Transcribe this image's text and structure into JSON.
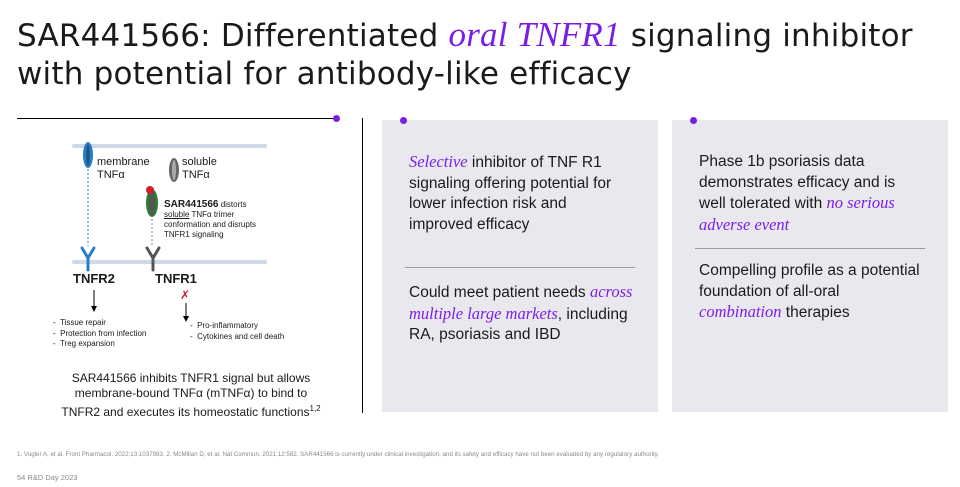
{
  "title": {
    "part1": "SAR441566: Differentiated ",
    "accent": "oral TNFR1",
    "part2": " signaling inhibitor with potential for antibody-like efficacy"
  },
  "diagram": {
    "membrane_tnf_label": "membrane",
    "membrane_tnf_sub": "TNFα",
    "soluble_tnf_label": "soluble",
    "soluble_tnf_sub": "TNFα",
    "drug_name": "SAR441566",
    "drug_desc_1": " distorts",
    "drug_desc_2": "soluble",
    "drug_desc_3": " TNFα trimer",
    "drug_desc_4": "conformation and disrupts",
    "drug_desc_5": "TNFR1 signaling",
    "tnfr2_label": "TNFR2",
    "tnfr1_label": "TNFR1",
    "tnfr2_effects": [
      "Tissue repair",
      "Protection from infection",
      "Treg expansion"
    ],
    "tnfr1_effects": [
      "Pro-inflammatory",
      "Cytokines and cell death"
    ],
    "blocked_mark": "✗",
    "caption_1": "SAR441566 inhibits TNFR1 signal but allows",
    "caption_2": "membrane-bound TNFα (mTNFα) to bind to",
    "caption_3": "TNFR2 and executes its homeostatic functions",
    "caption_sup": "1,2"
  },
  "card1": {
    "p1_em": "Selective",
    "p1_rest": " inhibitor of TNF R1 signaling offering potential for lower infection risk and improved efficacy",
    "p2_pre": "Could meet patient needs ",
    "p2_em": "across multiple large markets",
    "p2_post": ", including RA, psoriasis and IBD"
  },
  "card2": {
    "p1_pre": "Phase 1b psoriasis data demonstrates efficacy and is well tolerated with ",
    "p1_em": "no serious adverse event",
    "p2_pre": "Compelling profile as a potential foundation of all-oral ",
    "p2_em": "combination",
    "p2_post": " therapies"
  },
  "footnote": "1. Vugler A, et al. Front Pharmacol. 2022;13:1037983.     2. McMillan D, et al. Nat Commun. 2021;12:582.     SAR441566 is currently under clinical investigation, and its safety and efficacy have not been evaluated by any regulatory authority.",
  "footer": "54   R&D Day 2023",
  "colors": {
    "accent": "#7a1ee6",
    "card_bg": "#eae8ef",
    "receptor_blue": "#2a7fc4",
    "receptor_gray": "#555555",
    "drug_red": "#d0202a",
    "drug_green": "#2e7d32"
  }
}
